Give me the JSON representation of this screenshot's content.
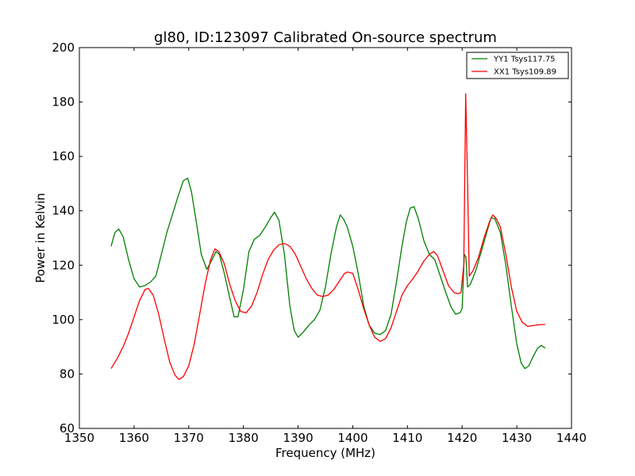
{
  "chart_data": {
    "type": "line",
    "title": "gl80, ID:123097 Calibrated On-source spectrum",
    "xlabel": "Frequency (MHz)",
    "ylabel": "Power in Kelvin",
    "xlim": [
      1350,
      1440
    ],
    "ylim": [
      60,
      200
    ],
    "xticks": [
      "1350",
      "1360",
      "1370",
      "1380",
      "1390",
      "1400",
      "1410",
      "1420",
      "1430",
      "1440"
    ],
    "yticks": [
      "60",
      "80",
      "100",
      "120",
      "140",
      "160",
      "180",
      "200"
    ],
    "grid": false,
    "legend_position": "top-right",
    "series": [
      {
        "name": "YY1 Tsys117.75",
        "color": "#008000",
        "points": [
          [
            1355.8,
            127
          ],
          [
            1356.5,
            132
          ],
          [
            1357.2,
            133.3
          ],
          [
            1358.0,
            130.5
          ],
          [
            1359.0,
            122
          ],
          [
            1360.0,
            115
          ],
          [
            1361.0,
            112
          ],
          [
            1362.0,
            112.5
          ],
          [
            1363.0,
            113.8
          ],
          [
            1364.0,
            116
          ],
          [
            1365.0,
            124
          ],
          [
            1366.0,
            132
          ],
          [
            1367.0,
            138.5
          ],
          [
            1368.0,
            145
          ],
          [
            1369.0,
            151
          ],
          [
            1369.8,
            152
          ],
          [
            1370.5,
            147
          ],
          [
            1371.3,
            137
          ],
          [
            1372.3,
            124
          ],
          [
            1373.3,
            118.5
          ],
          [
            1374.0,
            121
          ],
          [
            1375.0,
            125
          ],
          [
            1375.6,
            124
          ],
          [
            1376.5,
            117
          ],
          [
            1377.5,
            108
          ],
          [
            1378.3,
            101
          ],
          [
            1379.0,
            101
          ],
          [
            1380.0,
            111
          ],
          [
            1381.0,
            125
          ],
          [
            1382.0,
            129.5
          ],
          [
            1383.0,
            131
          ],
          [
            1384.0,
            134
          ],
          [
            1385.0,
            137.5
          ],
          [
            1385.7,
            139.5
          ],
          [
            1386.5,
            136.5
          ],
          [
            1387.5,
            124
          ],
          [
            1388.5,
            105
          ],
          [
            1389.3,
            96
          ],
          [
            1390.0,
            93.5
          ],
          [
            1391.0,
            95.5
          ],
          [
            1392.0,
            98
          ],
          [
            1393.0,
            100
          ],
          [
            1394.0,
            103.5
          ],
          [
            1395.0,
            112
          ],
          [
            1396.0,
            124
          ],
          [
            1397.0,
            134
          ],
          [
            1397.7,
            138.5
          ],
          [
            1398.3,
            137
          ],
          [
            1399.0,
            134
          ],
          [
            1400.0,
            127
          ],
          [
            1401.0,
            117
          ],
          [
            1402.0,
            105
          ],
          [
            1403.0,
            98
          ],
          [
            1404.0,
            95
          ],
          [
            1405.0,
            94.5
          ],
          [
            1406.0,
            96
          ],
          [
            1407.0,
            102
          ],
          [
            1408.0,
            114
          ],
          [
            1409.0,
            127
          ],
          [
            1409.8,
            136
          ],
          [
            1410.5,
            141
          ],
          [
            1411.2,
            141.5
          ],
          [
            1412.0,
            137
          ],
          [
            1413.0,
            129
          ],
          [
            1414.0,
            124
          ],
          [
            1415.0,
            122
          ],
          [
            1416.0,
            116
          ],
          [
            1417.0,
            110
          ],
          [
            1418.0,
            104.5
          ],
          [
            1418.8,
            102
          ],
          [
            1419.6,
            102.5
          ],
          [
            1420.0,
            104
          ],
          [
            1420.4,
            124
          ],
          [
            1420.7,
            123
          ],
          [
            1421.0,
            112
          ],
          [
            1421.5,
            113
          ],
          [
            1422.5,
            118
          ],
          [
            1423.5,
            125
          ],
          [
            1424.5,
            132
          ],
          [
            1425.3,
            137.5
          ],
          [
            1426.0,
            137
          ],
          [
            1427.0,
            132
          ],
          [
            1428.0,
            120
          ],
          [
            1429.0,
            105
          ],
          [
            1430.0,
            91
          ],
          [
            1430.8,
            84
          ],
          [
            1431.5,
            82
          ],
          [
            1432.2,
            83
          ],
          [
            1433.0,
            86.5
          ],
          [
            1433.8,
            89.5
          ],
          [
            1434.5,
            90.5
          ],
          [
            1435.2,
            89.5
          ]
        ]
      },
      {
        "name": "XX1 Tsys109.89",
        "color": "#ff0000",
        "points": [
          [
            1355.8,
            82
          ],
          [
            1357.0,
            86
          ],
          [
            1358.0,
            90
          ],
          [
            1359.0,
            95
          ],
          [
            1360.0,
            101
          ],
          [
            1361.0,
            107
          ],
          [
            1362.0,
            111
          ],
          [
            1362.6,
            111.5
          ],
          [
            1363.5,
            109
          ],
          [
            1364.5,
            102
          ],
          [
            1365.5,
            93
          ],
          [
            1366.5,
            84.5
          ],
          [
            1367.5,
            79.5
          ],
          [
            1368.2,
            78
          ],
          [
            1369.0,
            79
          ],
          [
            1370.0,
            83
          ],
          [
            1371.0,
            91
          ],
          [
            1372.0,
            102
          ],
          [
            1373.0,
            113
          ],
          [
            1374.0,
            122
          ],
          [
            1374.8,
            126
          ],
          [
            1375.5,
            125
          ],
          [
            1376.5,
            120.5
          ],
          [
            1377.5,
            113
          ],
          [
            1378.5,
            107
          ],
          [
            1379.5,
            103
          ],
          [
            1380.5,
            102.5
          ],
          [
            1381.5,
            105
          ],
          [
            1382.5,
            110
          ],
          [
            1383.5,
            116.5
          ],
          [
            1384.5,
            122
          ],
          [
            1385.5,
            125.5
          ],
          [
            1386.5,
            127.5
          ],
          [
            1387.5,
            128
          ],
          [
            1388.5,
            127
          ],
          [
            1389.5,
            124
          ],
          [
            1390.5,
            119.5
          ],
          [
            1391.5,
            115
          ],
          [
            1392.5,
            111.5
          ],
          [
            1393.5,
            109
          ],
          [
            1394.5,
            108.5
          ],
          [
            1395.5,
            109
          ],
          [
            1396.5,
            111
          ],
          [
            1397.5,
            114
          ],
          [
            1398.5,
            117
          ],
          [
            1399.0,
            117.5
          ],
          [
            1400.0,
            117
          ],
          [
            1401.0,
            111
          ],
          [
            1402.0,
            104
          ],
          [
            1403.0,
            98
          ],
          [
            1404.0,
            93.5
          ],
          [
            1405.0,
            92
          ],
          [
            1406.0,
            93
          ],
          [
            1407.0,
            97
          ],
          [
            1408.0,
            103
          ],
          [
            1409.0,
            109
          ],
          [
            1410.0,
            112.5
          ],
          [
            1411.0,
            115
          ],
          [
            1412.0,
            118
          ],
          [
            1413.0,
            121.5
          ],
          [
            1414.0,
            124
          ],
          [
            1414.8,
            125
          ],
          [
            1415.5,
            123.5
          ],
          [
            1416.5,
            118
          ],
          [
            1417.5,
            112.5
          ],
          [
            1418.5,
            110
          ],
          [
            1419.2,
            109.5
          ],
          [
            1419.8,
            110
          ],
          [
            1420.3,
            120
          ],
          [
            1420.65,
            183
          ],
          [
            1421.0,
            150
          ],
          [
            1421.3,
            116
          ],
          [
            1422.0,
            118
          ],
          [
            1423.0,
            123
          ],
          [
            1424.0,
            130
          ],
          [
            1425.0,
            136
          ],
          [
            1425.6,
            138.5
          ],
          [
            1426.3,
            137
          ],
          [
            1427.0,
            134
          ],
          [
            1428.0,
            124
          ],
          [
            1429.0,
            112
          ],
          [
            1430.0,
            103
          ],
          [
            1431.0,
            99
          ],
          [
            1432.0,
            97.5
          ],
          [
            1433.0,
            97.8
          ],
          [
            1434.0,
            98.1
          ],
          [
            1435.2,
            98.2
          ]
        ]
      }
    ]
  }
}
